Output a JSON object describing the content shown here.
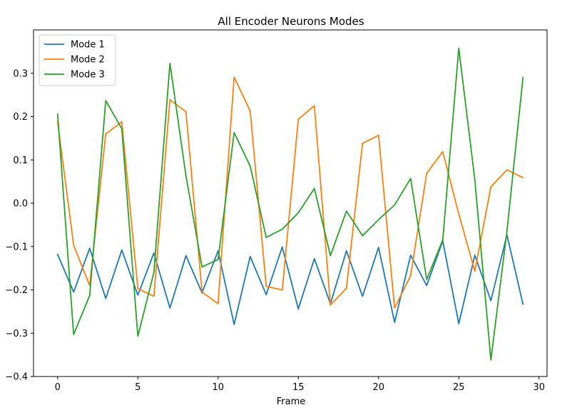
{
  "chart_data": {
    "type": "line",
    "title": "All Encoder Neurons Modes",
    "xlabel": "Frame",
    "ylabel": "",
    "xlim": [
      -1.5,
      30.5
    ],
    "ylim": [
      -0.4,
      0.4
    ],
    "x_ticks": [
      0,
      5,
      10,
      15,
      20,
      25,
      30
    ],
    "y_ticks": [
      -0.4,
      -0.3,
      -0.2,
      -0.1,
      0.0,
      0.1,
      0.2,
      0.3
    ],
    "x_tick_labels": [
      "0",
      "5",
      "10",
      "15",
      "20",
      "25",
      "30"
    ],
    "y_tick_labels": [
      "−0.4",
      "−0.3",
      "−0.2",
      "−0.1",
      "0.0",
      "0.1",
      "0.2",
      "0.3"
    ],
    "grid": false,
    "legend_position": "top-left",
    "x": [
      0,
      1,
      2,
      3,
      4,
      5,
      6,
      7,
      8,
      9,
      10,
      11,
      12,
      13,
      14,
      15,
      16,
      17,
      18,
      19,
      20,
      21,
      22,
      23,
      24,
      25,
      26,
      27,
      28,
      29
    ],
    "series": [
      {
        "name": "Mode 1",
        "color": "#1f77b4",
        "values": [
          -0.118,
          -0.205,
          -0.104,
          -0.22,
          -0.108,
          -0.212,
          -0.115,
          -0.242,
          -0.121,
          -0.207,
          -0.11,
          -0.28,
          -0.123,
          -0.211,
          -0.101,
          -0.244,
          -0.128,
          -0.232,
          -0.11,
          -0.215,
          -0.102,
          -0.275,
          -0.12,
          -0.19,
          -0.087,
          -0.278,
          -0.12,
          -0.225,
          -0.073,
          -0.233
        ]
      },
      {
        "name": "Mode 2",
        "color": "#ff7f0e",
        "values": [
          0.188,
          -0.097,
          -0.19,
          0.16,
          0.188,
          -0.197,
          -0.215,
          0.239,
          0.211,
          -0.205,
          -0.232,
          0.291,
          0.213,
          -0.192,
          -0.2,
          0.194,
          0.225,
          -0.235,
          -0.196,
          0.138,
          0.157,
          -0.242,
          -0.167,
          0.069,
          0.119,
          -0.025,
          -0.157,
          0.038,
          0.077,
          0.059
        ]
      },
      {
        "name": "Mode 3",
        "color": "#2ca02c",
        "values": [
          0.206,
          -0.303,
          -0.213,
          0.237,
          0.172,
          -0.307,
          -0.16,
          0.323,
          0.063,
          -0.147,
          -0.13,
          0.163,
          0.086,
          -0.079,
          -0.06,
          -0.022,
          0.034,
          -0.121,
          -0.018,
          -0.075,
          -0.038,
          -0.004,
          0.057,
          -0.176,
          -0.085,
          0.358,
          0.054,
          -0.362,
          -0.065,
          0.29
        ]
      }
    ]
  }
}
